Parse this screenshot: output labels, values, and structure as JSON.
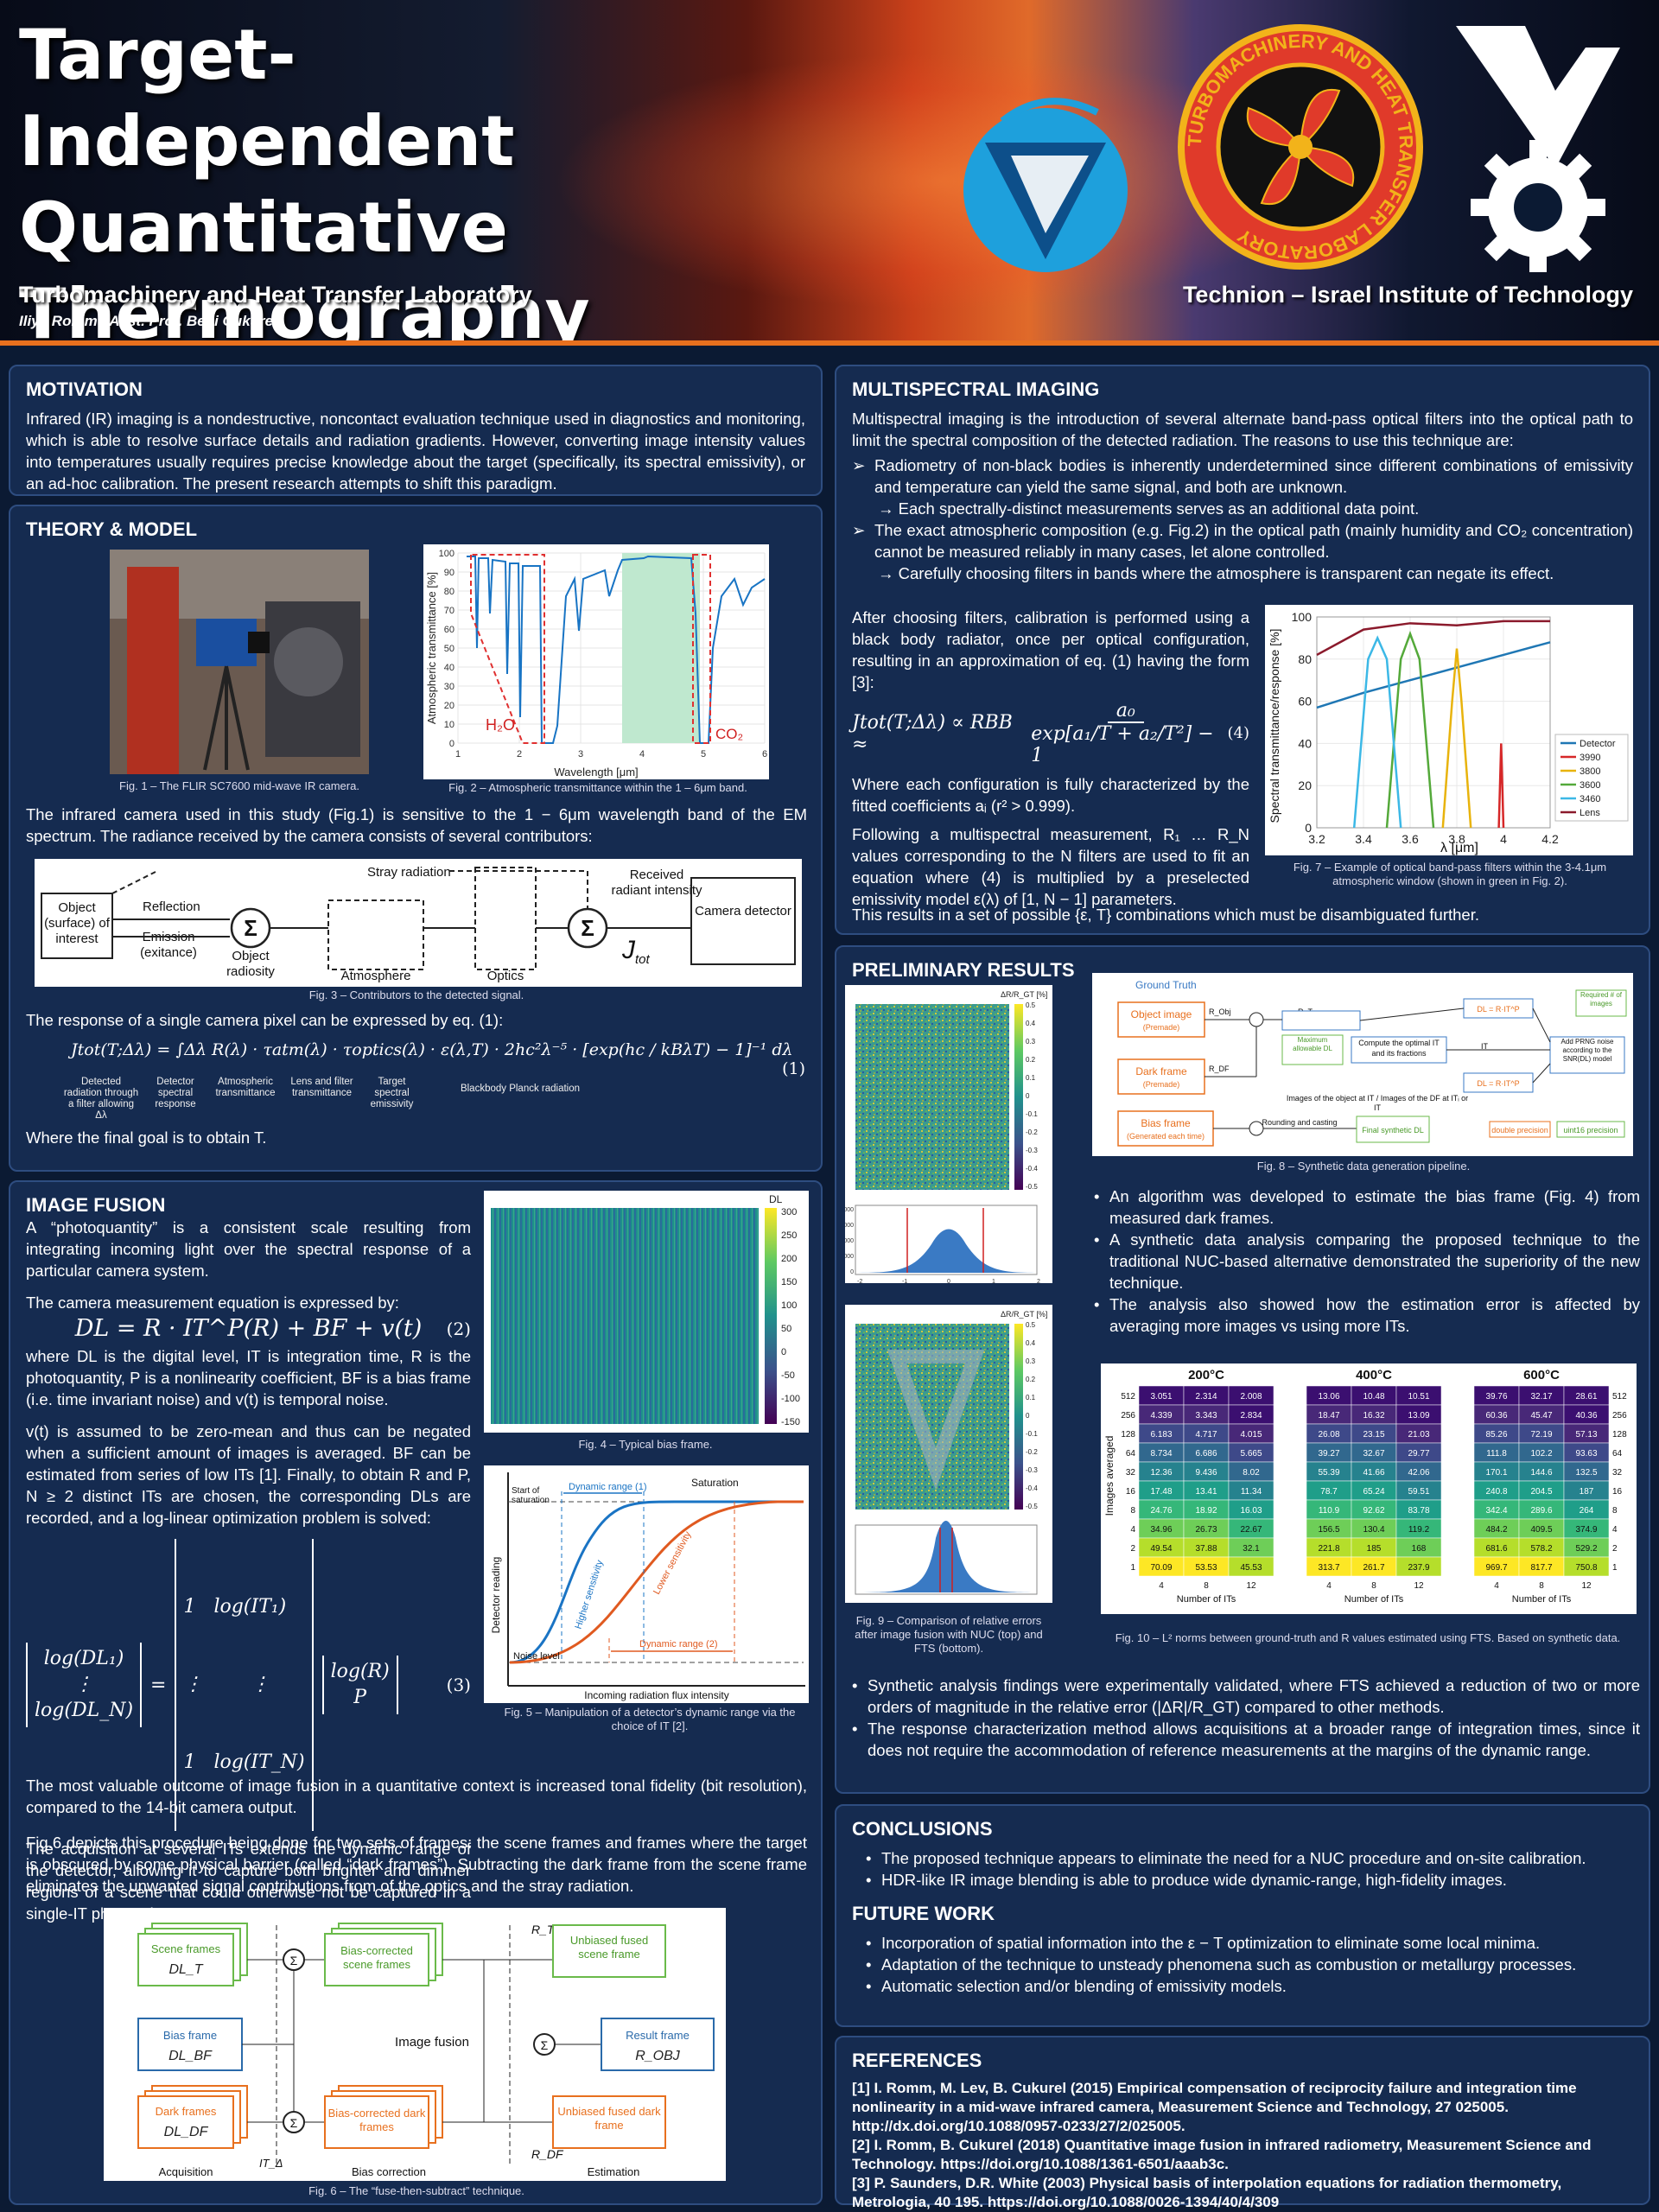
{
  "header": {
    "title_lines": [
      "Target-Independent",
      "Quantitative",
      "Thermography"
    ],
    "lab": "Turbomachinery and Heat Transfer Laboratory",
    "authors": "Iliya Romm , Asst. Prof. Beni Cukurel",
    "institute": "Technion – Israel Institute of Technology",
    "seal_text": "TURBOMACHINERY AND HEAT TRANSFER LABORATORY"
  },
  "motivation": {
    "title": "MOTIVATION",
    "text": "Infrared (IR) imaging is a nondestructive, noncontact evaluation technique used in diagnostics and monitoring, which is able to resolve surface details and radiation gradients. However, converting image intensity values into temperatures usually requires precise knowledge about the target (specifically, its spectral emissivity), or an ad-hoc calibration. The present research attempts to shift this paradigm."
  },
  "theory": {
    "title": "THEORY & MODEL",
    "fig1_cap": "Fig. 1 – The FLIR SC7600 mid-wave IR camera.",
    "fig2_cap": "Fig. 2 – Atmospheric transmittance within the 1 – 6μm band.",
    "fig2_ylabel": "Atmospheric transmittance [%]",
    "fig2_xlabel": "Wavelength [μm]",
    "fig2_h2o": "H₂O",
    "fig2_co2": "CO₂",
    "fig2_yticks": [
      "100",
      "90",
      "80",
      "70",
      "60",
      "50",
      "40",
      "30",
      "20",
      "10",
      "0"
    ],
    "fig2_xticks": [
      "1",
      "2",
      "3",
      "4",
      "5",
      "6"
    ],
    "text1": "The infrared camera used in this study (Fig.1) is sensitive to the 1 − 6μm wavelength band of the EM spectrum. The radiance received by the camera consists of several contributors:",
    "d_object": "Object (surface) of interest",
    "d_reflection": "Reflection",
    "d_emission": "Emission (exitance)",
    "d_radiosity": "Object radiosity",
    "d_stray": "Stray radiation",
    "d_atmos": "Atmosphere",
    "d_optics": "Optics",
    "d_received": "Received radiant intensity",
    "d_jtot": "J",
    "d_jtot_sub": "tot",
    "d_camera": "Camera detector",
    "fig3_cap": "Fig. 3 – Contributors to the detected signal.",
    "text2": "The response  of a single camera pixel can be expressed by eq. (1):",
    "eq1_lhs": "Jtot(T;Δλ) =",
    "eq1_int": "∫Δλ R(λ) · τatm(λ) · τoptics(λ) · ε(λ,T) · 2hc²λ⁻⁵ · [exp(hc / kBλT) − 1]⁻¹ dλ",
    "eq1_num": "(1)",
    "eq1_l1": "Detected radiation through a filter allowing Δλ",
    "eq1_l2": "Detector spectral response",
    "eq1_l3": "Atmospheric transmittance",
    "eq1_l4": "Lens and filter transmittance",
    "eq1_l5": "Target spectral emissivity",
    "eq1_l6": "Blackbody Planck radiation",
    "text3": "Where the final goal is to obtain T."
  },
  "fusion": {
    "title": "IMAGE FUSION",
    "text1": "A “photoquantity” is a consistent scale resulting from integrating incoming light over the spectral response of a particular camera system.",
    "text2": "The camera measurement equation is expressed by:",
    "eq2": "DL = R · IT^P(R) + BF + v(t)",
    "eq2_num": "(2)",
    "text3": "where DL is the digital level, IT is integration time, R is the photoquantity, P is a nonlinearity coefficient, BF is a bias frame (i.e. time invariant noise) and v(t) is temporal noise.",
    "text4": "v(t) is assumed to be zero-mean and thus can be negated when a sufficient amount of images is averaged. BF can be estimated from series of low ITs [1]. Finally, to obtain R and P, N ≥ 2 distinct ITs are chosen, the corresponding DLs are recorded, and a log-linear optimization problem is solved:",
    "eq3_l1": "log(DL₁)",
    "eq3_l2": "⋮",
    "eq3_l3": "log(DL_N)",
    "eq3_m1": "1   log(IT₁)",
    "eq3_m2": "⋮        ⋮",
    "eq3_m3": "1   log(IT_N)",
    "eq3_v1": "log(R)",
    "eq3_v2": "P",
    "eq3_num": "(3)",
    "text5": "The acquisition at several ITs extends the dynamic range of the detector, allowing it to capture both brighter and dimmer regions of a scene that could otherwise not be captured in a single-IT photo, Fig.5.",
    "text6": "The most valuable outcome of image fusion in a quantitative context is increased tonal fidelity (bit resolution), compared to the 14-bit camera output.",
    "text7": "Fig.6 depicts this procedure being done for two sets of frames: the scene frames and frames where the target is obscured by some physical barrier (called “dark frames”). Subtracting the dark frame from the scene frame eliminates the unwanted signal contributions from of the optics and the stray radiation.",
    "fig4_cap": "Fig. 4 – Typical bias frame.",
    "fig4_cb_title": "DL",
    "fig4_cb_ticks": [
      "300",
      "250",
      "200",
      "150",
      "100",
      "50",
      "0",
      "-50",
      "-100",
      "-150"
    ],
    "fig5_cap": "Fig. 5 – Manipulation of a detector’s dynamic range via the choice of IT [2].",
    "fig5_ylabel": "Detector reading",
    "fig5_xlabel": "Incoming radiation flux intensity",
    "fig5_saturation": "Saturation",
    "fig5_start_sat": "Start of saturation",
    "fig5_dr1": "Dynamic range (1)",
    "fig5_dr2": "Dynamic range (2)",
    "fig5_noise": "Noise level",
    "fig5_high": "Higher sensitivity",
    "fig5_low": "Lower sensitivity",
    "fig6_cap": "Fig. 6 – The “fuse-then-subtract” technique.",
    "fig6_scene": "Scene frames",
    "fig6_scene_var": "DL_T",
    "fig6_bias": "Bias frame",
    "fig6_bias_var": "DL_BF",
    "fig6_dark": "Dark frames",
    "fig6_dark_var": "DL_DF",
    "fig6_bc_scene": "Bias-corrected scene frames",
    "fig6_bc_dark": "Bias-corrected dark frames",
    "fig6_fusion": "Image fusion",
    "fig6_ub_scene": "Unbiased fused scene frame",
    "fig6_ub_dark": "Unbiased fused dark frame",
    "fig6_result": "Result frame",
    "fig6_result_var": "R_OBJ",
    "fig6_rt": "R_T",
    "fig6_rdf": "R_DF",
    "fig6_itd": "IT_Δ",
    "fig6_acq": "Acquisition",
    "fig6_bcor": "Bias correction",
    "fig6_est": "Estimation"
  },
  "multi": {
    "title": "MULTISPECTRAL IMAGING",
    "text1": "Multispectral imaging is the introduction of several alternate band-pass optical filters into the optical path to limit the spectral composition of the detected radiation. The reasons to use this technique are:",
    "b1": "Radiometry of non-black bodies is inherently underdetermined since different combinations of emissivity and temperature can yield the same signal, and both are unknown.",
    "b1s": "→ Each spectrally-distinct measurements serves as an additional data point.",
    "b2": "The exact atmospheric composition (e.g. Fig.2) in the optical path (mainly humidity and CO₂ concentration) cannot be measured reliably in many cases, let alone controlled.",
    "b2s": "→ Carefully choosing filters in bands where the atmosphere is transparent can negate its effect.",
    "text2": "After choosing filters, calibration is performed using a black body radiator, once per optical configuration, resulting in an approximation of eq. (1) having the form [3]:",
    "eq4_lhs": "Jtot(T;Δλ) ∝ RBB ≈",
    "eq4_num": "a₀",
    "eq4_den": "exp[a₁/T + a₂/T²] − 1",
    "eq4_tag": "(4)",
    "text3": "Where each configuration is fully characterized by the fitted coefficients aᵢ (r² > 0.999).",
    "text4": "Following a multispectral measurement, R₁ … R_N values corresponding to the N filters are used to fit an equation where (4) is multiplied by a preselected emissivity model ε(λ) of [1, N − 1] parameters.",
    "text5": "This results in a set of possible {ε, T} combinations which must be disambiguated further.",
    "fig7_cap": "Fig. 7 – Example of optical band-pass filters within the 3-4.1μm atmospheric window (shown in green in Fig. 2).",
    "fig7_ylabel": "Spectral transmittance/response [%]",
    "fig7_xlabel": "λ [μm]",
    "fig7_yticks": [
      "100",
      "80",
      "60",
      "40",
      "20",
      "0"
    ],
    "fig7_xticks": [
      "3.2",
      "3.4",
      "3.6",
      "3.8",
      "4",
      "4.2"
    ],
    "fig7_legend": [
      "Detector",
      "3990",
      "3800",
      "3600",
      "3460",
      "Lens"
    ]
  },
  "chart_data": [
    {
      "type": "line",
      "title": "",
      "xlabel": "λ [μm]",
      "ylabel": "Spectral transmittance/response [%]",
      "xlim": [
        3.2,
        4.2
      ],
      "ylim": [
        0,
        100
      ],
      "legend": "right",
      "series": [
        {
          "name": "Detector",
          "color": "#1f77b4",
          "x": [
            3.2,
            3.4,
            3.6,
            3.8,
            4.0,
            4.2
          ],
          "y": [
            57,
            64,
            70,
            76,
            82,
            88
          ]
        },
        {
          "name": "3990",
          "color": "#d62728",
          "x": [
            3.98,
            3.99,
            4.0
          ],
          "y": [
            0,
            40,
            0
          ]
        },
        {
          "name": "3800",
          "color": "#e8b30c",
          "x": [
            3.74,
            3.78,
            3.8,
            3.82,
            3.86
          ],
          "y": [
            0,
            60,
            85,
            60,
            0
          ]
        },
        {
          "name": "3600",
          "color": "#54a93a",
          "x": [
            3.5,
            3.56,
            3.6,
            3.64,
            3.7
          ],
          "y": [
            0,
            80,
            92,
            80,
            0
          ]
        },
        {
          "name": "3460",
          "color": "#3cb8e6",
          "x": [
            3.36,
            3.42,
            3.46,
            3.5,
            3.56
          ],
          "y": [
            0,
            80,
            90,
            80,
            0
          ]
        },
        {
          "name": "Lens",
          "color": "#8b1a2c",
          "x": [
            3.2,
            3.3,
            3.4,
            3.6,
            3.8,
            4.0,
            4.2
          ],
          "y": [
            82,
            88,
            94,
            97,
            96,
            98,
            98
          ]
        }
      ]
    },
    {
      "type": "heatmap",
      "title": "Fig. 10 – L² norms",
      "xlabel": "Number of ITs",
      "ylabel": "Images averaged",
      "x": [
        4,
        8,
        12
      ],
      "y": [
        512,
        256,
        128,
        64,
        32,
        16,
        8,
        4,
        2,
        1
      ],
      "panels": [
        {
          "name": "200°C",
          "values": [
            [
              3.051,
              2.314,
              2.008
            ],
            [
              4.339,
              3.343,
              2.834
            ],
            [
              6.183,
              4.717,
              4.015
            ],
            [
              8.734,
              6.686,
              5.665
            ],
            [
              12.36,
              9.436,
              8.02
            ],
            [
              17.48,
              13.41,
              11.34
            ],
            [
              24.76,
              18.92,
              16.03
            ],
            [
              34.96,
              26.73,
              22.67
            ],
            [
              49.54,
              37.88,
              32.1
            ],
            [
              70.09,
              53.53,
              45.53
            ]
          ]
        },
        {
          "name": "400°C",
          "values": [
            [
              13.06,
              10.48,
              10.51
            ],
            [
              18.47,
              16.32,
              13.09
            ],
            [
              26.08,
              23.15,
              21.03
            ],
            [
              39.27,
              32.67,
              29.77
            ],
            [
              55.39,
              41.66,
              42.06
            ],
            [
              78.7,
              65.24,
              59.51
            ],
            [
              110.9,
              92.62,
              83.78
            ],
            [
              156.5,
              130.4,
              119.2
            ],
            [
              221.8,
              185,
              168
            ],
            [
              313.7,
              261.7,
              237.9
            ]
          ]
        },
        {
          "name": "600°C",
          "values": [
            [
              39.76,
              32.17,
              28.61
            ],
            [
              60.36,
              45.47,
              40.36
            ],
            [
              85.26,
              72.19,
              57.13
            ],
            [
              111.8,
              102.2,
              93.63
            ],
            [
              170.1,
              144.6,
              132.5
            ],
            [
              240.8,
              204.5,
              187
            ],
            [
              342.4,
              289.6,
              264
            ],
            [
              484.2,
              409.5,
              374.9
            ],
            [
              681.6,
              578.2,
              529.2
            ],
            [
              969.7,
              817.7,
              750.8
            ]
          ]
        }
      ]
    }
  ],
  "prelim": {
    "title": "PRELIMINARY RESULTS",
    "fig9_cap": "Fig. 9 – Comparison of relative errors after image fusion with NUC (top) and FTS (bottom).",
    "fig9_cb_title": "ΔR/R_GT [%]",
    "fig9_cb_ticks": [
      "0.5",
      "0.4",
      "0.3",
      "0.2",
      "0.1",
      "0",
      "-0.1",
      "-0.2",
      "-0.3",
      "-0.4",
      "-0.5"
    ],
    "fig9_hist_yt": [
      "8000",
      "6000",
      "4000",
      "2000",
      "0"
    ],
    "fig9_hist_xt": [
      "-2",
      "-1",
      "0",
      "1",
      "2"
    ],
    "fig8_cap": "Fig. 8 – Synthetic data generation pipeline.",
    "fig8_gt": "Ground Truth",
    "fig8_obj": "Object image",
    "fig8_obj2": "(Premade)",
    "fig8_dark": "Dark frame",
    "fig8_dark2": "(Premade)",
    "fig8_bias": "Bias frame",
    "fig8_bias2": "(Generated each time)",
    "fig8_max": "Maximum allowable DL",
    "fig8_opt": "Compute the optimal IT and its fractions",
    "fig8_prng": "Add PRNG noise according to the SNR(DL) model",
    "fig8_req": "Required # of images",
    "fig8_round": "Rounding and casting",
    "fig8_final": "Final synthetic DL",
    "fig8_imgs": "Images of the object at IT / Images of the DF at ITᵢ or IT",
    "fig8_dp": "double precision",
    "fig8_u16": "uint16 precision",
    "fig8_r_obj": "R_Obj",
    "fig8_r_t": "R_T",
    "fig8_r_df": "R_DF",
    "fig8_dl1": "DL = R·IT^P",
    "fig8_dl2": "DL = R·IT^P",
    "fig8_it": "IT",
    "b1": "An algorithm was developed to estimate the bias frame (Fig. 4) from measured dark frames.",
    "b2": "A synthetic data analysis comparing the proposed technique to the traditional NUC-based alternative demonstrated the superiority of the new technique.",
    "b3": "The analysis also showed how the estimation error is affected by averaging more images vs using more ITs.",
    "fig10_cap": "Fig. 10 – L² norms between ground-truth and R values estimated using FTS. Based on synthetic data.",
    "fig10_ylabel": "Images averaged",
    "fig10_xlabel": "Number of ITs",
    "b4": "Synthetic analysis findings were experimentally validated, where FTS achieved a reduction of two or more orders of magnitude in the relative error (|ΔR|/R_GT) compared to other methods.",
    "b5": "The response characterization method allows acquisitions at a broader range of integration times, since it does not require the accommodation of reference measurements at the margins of the dynamic range."
  },
  "conclusions": {
    "title": "CONCLUSIONS",
    "items": [
      "The proposed technique appears to eliminate the need for a NUC procedure and on-site calibration.",
      "HDR-like IR image blending is able to produce wide dynamic-range, high-fidelity images."
    ],
    "fw_title": "FUTURE WORK",
    "fw_items": [
      "Incorporation of spatial information into the ε − T optimization to eliminate some local minima.",
      "Adaptation of the technique to unsteady phenomena such as combustion or metallurgy processes.",
      "Automatic selection and/or blending of emissivity models."
    ]
  },
  "references": {
    "title": "REFERENCES",
    "items": [
      "[1] I. Romm, M. Lev, B. Cukurel (2015) Empirical compensation of reciprocity failure and integration time nonlinearity in a mid-wave infrared camera, Measurement Science and Technology, 27 025005. http://dx.doi.org/10.1088/0957-0233/27/2/025005.",
      "[2] I. Romm, B. Cukurel (2018) Quantitative image fusion in infrared radiometry, Measurement Science and Technology. https://doi.org/10.1088/1361-6501/aaab3c.",
      "[3] P. Saunders, D.R. White (2003) Physical basis of interpolation equations for radiation thermometry, Metrologia, 40 195. https://doi.org/10.1088/0026-1394/40/4/309"
    ]
  },
  "colors": {
    "accent": "#e8701e",
    "panel": "#19325c",
    "technion_blue": "#1ea0dc",
    "lab_red": "#e03a2a",
    "lab_gold": "#f2b31a"
  }
}
